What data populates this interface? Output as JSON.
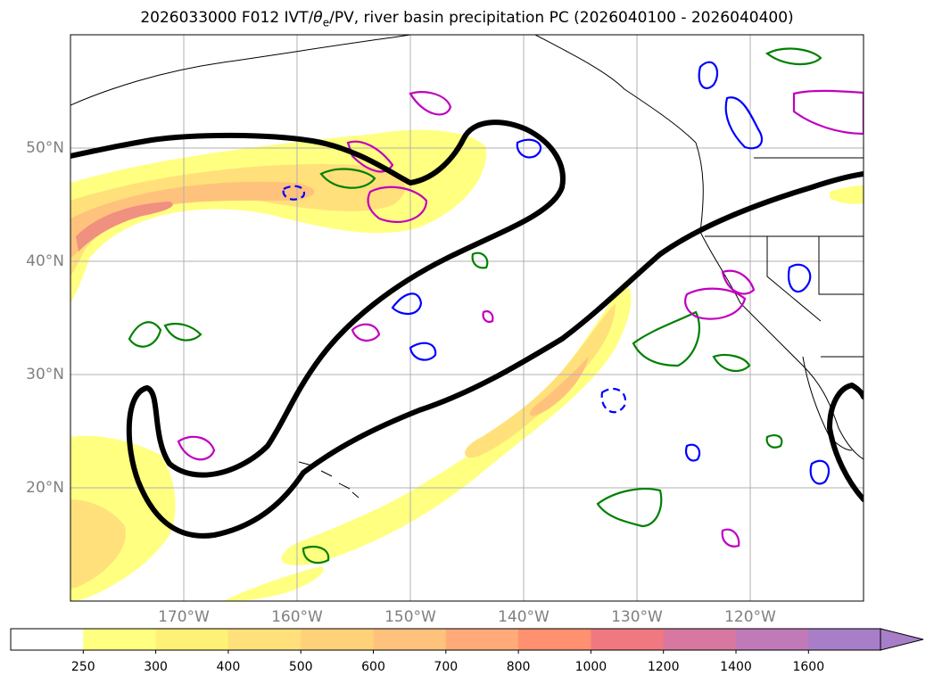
{
  "title": {
    "prefix": "2026033000 F012 IVT/",
    "theta": "θ",
    "sub": "e",
    "suffix": "/PV, river basin precipitation PC (2026040100 - 2026040400)"
  },
  "map": {
    "projection": "PlateCarree",
    "lon_range": [
      -180,
      -110
    ],
    "lat_range": [
      10,
      60
    ],
    "grid": true,
    "lat_ticks": [
      "20°N",
      "30°N",
      "40°N",
      "50°N"
    ],
    "lon_ticks": [
      "170°W",
      "160°W",
      "150°W",
      "140°W",
      "130°W",
      "120°W"
    ]
  },
  "contours": {
    "ivt_filled": {
      "variable": "IVT",
      "levels": [
        250,
        300,
        400,
        500,
        600,
        700,
        800,
        1000,
        1200,
        1400,
        1600
      ],
      "colors": [
        "#ffff80",
        "#fff076",
        "#ffe07a",
        "#ffd27a",
        "#ffc27c",
        "#ffaa78",
        "#ff9070",
        "#f07880",
        "#d878a0",
        "#c07ab8",
        "#a87ec8"
      ]
    },
    "line_colors": {
      "pv_jet": "#000000",
      "theta_e": "#008000",
      "blue": "#0000ff",
      "magenta": "#c000c0"
    }
  },
  "colorbar": {
    "tick_labels": [
      "250",
      "300",
      "400",
      "500",
      "600",
      "700",
      "800",
      "1000",
      "1200",
      "1400",
      "1600"
    ],
    "extend": "max",
    "colors": [
      "#ffffff",
      "#ffff80",
      "#fff076",
      "#ffe07a",
      "#ffd27a",
      "#ffc27c",
      "#ffaa78",
      "#ff9070",
      "#f07880",
      "#d878a0",
      "#c07ab8",
      "#a87ec8"
    ]
  }
}
